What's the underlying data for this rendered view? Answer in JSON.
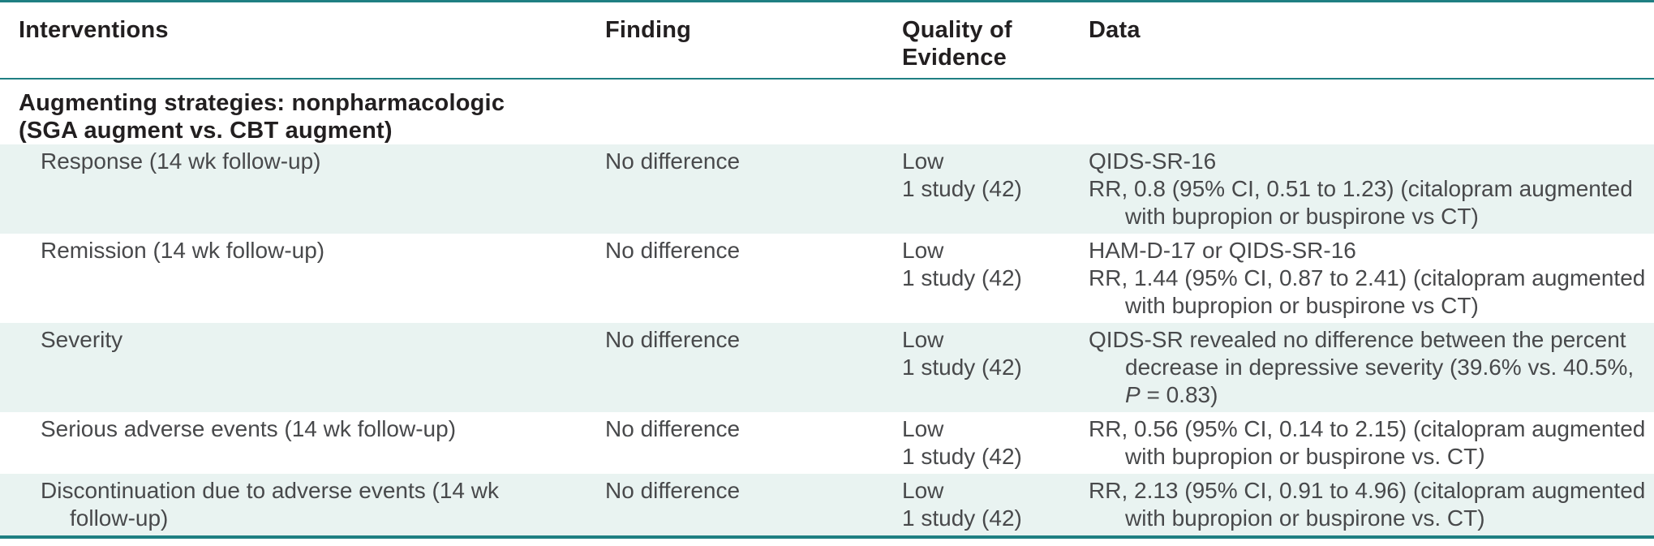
{
  "table": {
    "accent_color": "#1f7f82",
    "stripe_color": "#e9f3f1",
    "header": {
      "columns": [
        "Interventions",
        "Finding",
        "Quality of Evidence",
        "Data"
      ]
    },
    "section": {
      "title_lines": [
        "Augmenting strategies: nonpharmacologic",
        "(SGA augment vs. CBT augment)"
      ]
    },
    "rows": [
      {
        "striped": true,
        "size": "r3",
        "intervention_lines": [
          {
            "text": "Response (14 wk follow-up)",
            "indent": false
          }
        ],
        "finding": "No difference",
        "quality_lines": [
          "Low",
          "1 study (42)"
        ],
        "data_lines": [
          {
            "indent": false,
            "segments": [
              {
                "text": "QIDS-SR-16"
              }
            ]
          },
          {
            "indent": false,
            "segments": [
              {
                "text": "RR, 0.8 (95% CI, 0.51 to 1.23) (citalopram augmented"
              }
            ]
          },
          {
            "indent": true,
            "segments": [
              {
                "text": "with bupropion or buspirone vs CT)"
              }
            ]
          }
        ]
      },
      {
        "striped": false,
        "size": "r3",
        "intervention_lines": [
          {
            "text": "Remission (14 wk follow-up)",
            "indent": false
          }
        ],
        "finding": "No difference",
        "quality_lines": [
          "Low",
          "1 study (42)"
        ],
        "data_lines": [
          {
            "indent": false,
            "segments": [
              {
                "text": "HAM-D-17 or QIDS-SR-16"
              }
            ]
          },
          {
            "indent": false,
            "segments": [
              {
                "text": "RR, 1.44 (95% CI, 0.87 to 2.41) (citalopram augmented"
              }
            ]
          },
          {
            "indent": true,
            "segments": [
              {
                "text": "with bupropion or buspirone vs CT)"
              }
            ]
          }
        ]
      },
      {
        "striped": true,
        "size": "r3",
        "intervention_lines": [
          {
            "text": "Severity",
            "indent": false
          }
        ],
        "finding": "No difference",
        "quality_lines": [
          "Low",
          "1 study (42)"
        ],
        "data_lines": [
          {
            "indent": false,
            "segments": [
              {
                "text": "QIDS-SR revealed no difference between the percent"
              }
            ]
          },
          {
            "indent": true,
            "segments": [
              {
                "text": "decrease in depressive severity (39.6% vs. 40.5%,"
              }
            ]
          },
          {
            "indent": true,
            "segments": [
              {
                "text": "P",
                "italic": true
              },
              {
                "text": " = 0.83)"
              }
            ]
          }
        ]
      },
      {
        "striped": false,
        "size": "r2",
        "intervention_lines": [
          {
            "text": "Serious adverse events (14 wk follow-up)",
            "indent": false
          }
        ],
        "finding": "No difference",
        "quality_lines": [
          "Low",
          "1 study (42)"
        ],
        "data_lines": [
          {
            "indent": false,
            "segments": [
              {
                "text": "RR, 0.56 (95% CI, 0.14 to 2.15) (citalopram augmented"
              }
            ]
          },
          {
            "indent": true,
            "segments": [
              {
                "text": "with bupropion or buspirone vs. CT"
              },
              {
                "text": ")",
                "italic": true
              }
            ]
          }
        ]
      },
      {
        "striped": true,
        "size": "r2",
        "intervention_lines": [
          {
            "text": "Discontinuation due to adverse events (14 wk",
            "indent": false
          },
          {
            "text": "follow-up)",
            "indent": true
          }
        ],
        "finding": "No difference",
        "quality_lines": [
          "Low",
          "1 study (42)"
        ],
        "data_lines": [
          {
            "indent": false,
            "segments": [
              {
                "text": "RR, 2.13 (95% CI, 0.91 to 4.96) (citalopram augmented"
              }
            ]
          },
          {
            "indent": true,
            "segments": [
              {
                "text": "with bupropion or buspirone vs. CT)"
              }
            ]
          }
        ]
      }
    ]
  }
}
